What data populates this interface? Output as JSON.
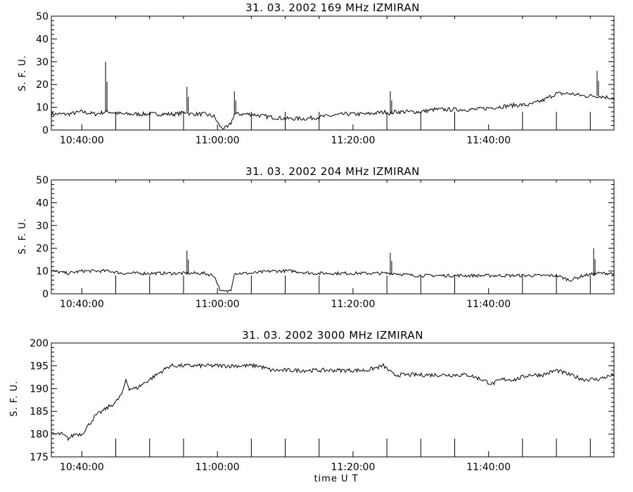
{
  "chart_data": [
    {
      "type": "line",
      "title": "31.  03. 2002   169 MHz   IZMIRAN",
      "ylabel": "S. F. U.",
      "xlabel": "",
      "ylim": [
        0,
        50
      ],
      "xlim": [
        "10:35:30",
        "11:58:30"
      ],
      "y_ticks": [
        "0",
        "10",
        "20",
        "30",
        "40",
        "50"
      ],
      "x_ticks": [
        "10:40:00",
        "11:00:00",
        "11:20:00",
        "11:40:00"
      ],
      "series": [
        {
          "x": [
            "10:35:30",
            "10:38:00",
            "10:40:00",
            "10:42:00",
            "10:43:30",
            "10:44:00",
            "10:46:00",
            "10:48:00",
            "10:50:00",
            "10:52:00",
            "10:54:00",
            "10:55:30",
            "10:56:00",
            "10:58:00",
            "10:59:30",
            "11:00:30",
            "11:01:30",
            "11:02:00",
            "11:02:30",
            "11:03:00",
            "11:05:00",
            "11:07:00",
            "11:10:00",
            "11:13:00",
            "11:16:00",
            "11:19:00",
            "11:22:00",
            "11:25:00",
            "11:25:30",
            "11:26:00",
            "11:28:00",
            "11:30:00",
            "11:32:00",
            "11:35:00",
            "11:38:00",
            "11:41:00",
            "11:44:00",
            "11:46:00",
            "11:48:00",
            "11:50:00",
            "11:52:00",
            "11:54:00",
            "11:55:30",
            "11:56:00",
            "11:58:30"
          ],
          "values": [
            7,
            7,
            8,
            7,
            8,
            8,
            7,
            7,
            7,
            7,
            7,
            8,
            7,
            7,
            6,
            1,
            1,
            3,
            7,
            7,
            7,
            6,
            5,
            5,
            6,
            7,
            7,
            8,
            7,
            8,
            8,
            8,
            9,
            9,
            9,
            10,
            11,
            11,
            13,
            16,
            16,
            15,
            15,
            15,
            14
          ]
        }
      ],
      "annotations": [
        {
          "x": "10:43:30",
          "y": 30
        },
        {
          "x": "10:55:30",
          "y": 19
        },
        {
          "x": "11:02:30",
          "y": 17
        },
        {
          "x": "11:25:30",
          "y": 17
        },
        {
          "x": "11:56:00",
          "y": 26
        }
      ]
    },
    {
      "type": "line",
      "title": "31.  03. 2002   204 MHz   IZMIRAN",
      "ylabel": "S. F. U.",
      "xlabel": "",
      "ylim": [
        0,
        50
      ],
      "xlim": [
        "10:35:30",
        "11:58:30"
      ],
      "y_ticks": [
        "0",
        "10",
        "20",
        "30",
        "40",
        "50"
      ],
      "x_ticks": [
        "10:40:00",
        "11:00:00",
        "11:20:00",
        "11:40:00"
      ],
      "series": [
        {
          "x": [
            "10:35:30",
            "10:38:00",
            "10:40:00",
            "10:42:00",
            "10:44:00",
            "10:46:00",
            "10:48:00",
            "10:50:00",
            "10:52:00",
            "10:54:00",
            "10:55:30",
            "10:56:00",
            "10:58:00",
            "10:59:30",
            "11:00:30",
            "11:01:30",
            "11:02:00",
            "11:02:30",
            "11:03:00",
            "11:05:00",
            "11:08:00",
            "11:11:00",
            "11:14:00",
            "11:17:00",
            "11:20:00",
            "11:23:00",
            "11:25:30",
            "11:26:00",
            "11:29:00",
            "11:32:00",
            "11:35:00",
            "11:38:00",
            "11:41:00",
            "11:44:00",
            "11:47:00",
            "11:50:00",
            "11:51:00",
            "11:52:00",
            "11:53:00",
            "11:54:00",
            "11:56:00",
            "11:58:30"
          ],
          "values": [
            10,
            9,
            10,
            10,
            10,
            9,
            9,
            9,
            9,
            9,
            9,
            9,
            9,
            8,
            1,
            1,
            2,
            9,
            9,
            9,
            10,
            10,
            9,
            9,
            9,
            9,
            9,
            9,
            8,
            8,
            8,
            8,
            8,
            8,
            8,
            8,
            7,
            6,
            7,
            8,
            9,
            9
          ]
        }
      ],
      "annotations": [
        {
          "x": "10:55:30",
          "y": 19
        },
        {
          "x": "11:25:30",
          "y": 18
        },
        {
          "x": "11:55:30",
          "y": 20
        }
      ]
    },
    {
      "type": "line",
      "title": "31.  03. 2002   3000 MHz   IZMIRAN",
      "ylabel": "S. F. U.",
      "xlabel": "time  U T",
      "ylim": [
        175,
        200
      ],
      "xlim": [
        "10:35:30",
        "11:58:30"
      ],
      "y_ticks": [
        "175",
        "180",
        "185",
        "190",
        "195",
        "200"
      ],
      "x_ticks": [
        "10:40:00",
        "11:00:00",
        "11:20:00",
        "11:40:00"
      ],
      "series": [
        {
          "x": [
            "10:35:30",
            "10:37:00",
            "10:38:00",
            "10:39:00",
            "10:40:00",
            "10:41:00",
            "10:42:00",
            "10:43:00",
            "10:44:00",
            "10:45:00",
            "10:46:00",
            "10:46:30",
            "10:47:00",
            "10:48:00",
            "10:49:00",
            "10:50:00",
            "10:51:00",
            "10:52:00",
            "10:53:00",
            "10:54:00",
            "10:55:00",
            "10:56:00",
            "10:58:00",
            "11:00:00",
            "11:02:00",
            "11:04:00",
            "11:06:00",
            "11:08:00",
            "11:10:00",
            "11:13:00",
            "11:16:00",
            "11:19:00",
            "11:22:00",
            "11:24:30",
            "11:26:00",
            "11:28:00",
            "11:31:00",
            "11:34:00",
            "11:37:00",
            "11:39:00",
            "11:40:30",
            "11:42:00",
            "11:44:00",
            "11:46:00",
            "11:48:00",
            "11:50:00",
            "11:52:00",
            "11:54:00",
            "11:56:00",
            "11:58:30"
          ],
          "values": [
            180,
            180,
            179,
            180,
            180,
            182,
            184,
            185,
            186,
            187,
            189,
            192,
            190,
            190,
            191,
            192,
            193,
            194,
            195,
            195,
            195,
            195,
            195,
            195,
            195,
            195,
            195,
            194,
            194,
            194,
            194,
            194,
            194,
            195,
            193,
            193,
            193,
            193,
            193,
            192,
            191,
            192,
            192,
            193,
            193,
            194,
            193,
            192,
            192,
            193
          ]
        }
      ]
    }
  ]
}
